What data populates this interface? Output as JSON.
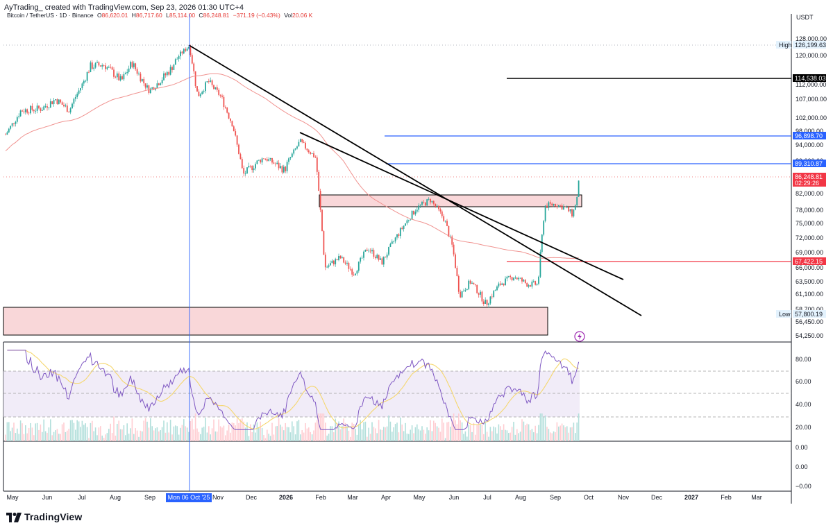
{
  "header": {
    "author_line": "AyTrading_ created with TradingView.com, Sep 23, 2026 01:30 UTC+4"
  },
  "legend": {
    "symbol": "Bitcoin / TetherUS · 1D · Binance",
    "open_label": "O",
    "open": "86,620.01",
    "high_label": "H",
    "high": "86,717.60",
    "low_label": "L",
    "low": "85,114.00",
    "close_label": "C",
    "close": "86,248.81",
    "change": "−371.19 (−0.43%)",
    "vol_label": "Vol",
    "vol": "20.06 K"
  },
  "price_axis": {
    "currency": "USDT",
    "ticks": [
      "128,000.00",
      "120,000.00",
      "112,000.00",
      "107,000.00",
      "102,000.00",
      "98,000.00",
      "94,000.00",
      "89,000.00",
      "82,000.00",
      "78,000.00",
      "75,000.00",
      "72,000.00",
      "69,000.00",
      "66,000.00",
      "63,500.00",
      "61,100.00",
      "58,700.00",
      "56,450.00",
      "54,250.00"
    ],
    "tags": [
      {
        "label": "High",
        "value": "126,199.63",
        "style": "high"
      },
      {
        "label": "",
        "value": "114,538.03",
        "style": "black"
      },
      {
        "label": "",
        "value": "96,898.70",
        "style": "blue"
      },
      {
        "label": "",
        "value": "89,310.87",
        "style": "blue"
      },
      {
        "label": "",
        "value": "86,248.81",
        "style": "last",
        "countdown": "02:29:26"
      },
      {
        "label": "",
        "value": "67,422.15",
        "style": "red"
      },
      {
        "label": "Low",
        "value": "57,800.19",
        "style": "low"
      }
    ]
  },
  "rsi_axis": {
    "ticks": [
      "80.00",
      "60.00",
      "40.00",
      "20.00"
    ]
  },
  "lower_axis": {
    "ticks": [
      "0.00",
      "0.00",
      "−0.00"
    ]
  },
  "time_axis": {
    "labels": [
      "May",
      "Jun",
      "Jul",
      "Aug",
      "Sep",
      "Oct",
      "Nov",
      "Dec",
      "2026",
      "Feb",
      "Mar",
      "Apr",
      "May",
      "Jun",
      "Jul",
      "Aug",
      "Sep",
      "Oct",
      "Nov",
      "Dec",
      "2027",
      "Feb",
      "Mar"
    ],
    "crosshair_label": "Mon 06 Oct '25"
  },
  "footer": {
    "brand": "TradingView"
  },
  "colors": {
    "up": "#26a69a",
    "down": "#ef5350",
    "ma": "#f0928f",
    "rsi": "#7e57c2",
    "rsi_ma": "#f5d76e",
    "zone_fill": "#f9d7d9",
    "zone_border": "#000000",
    "blue_level": "#2962ff",
    "red_level": "#f23645",
    "black_level": "#000000",
    "crosshair": "#2962ff"
  },
  "chart_data": {
    "type": "candlestick",
    "title": "Bitcoin / TetherUS · 1D · Binance",
    "ylabel": "USDT",
    "ylim": [
      54250,
      128000
    ],
    "series": [
      {
        "name": "Bitcoin / TetherUS",
        "monthly_close_path": [
          {
            "x": "2025-05",
            "y": 104000
          },
          {
            "x": "2025-06",
            "y": 107000
          },
          {
            "x": "2025-07",
            "y": 117000
          },
          {
            "x": "2025-08",
            "y": 111000
          },
          {
            "x": "2025-09",
            "y": 114000
          },
          {
            "x": "2025-10",
            "y": 110000
          },
          {
            "x": "2025-11",
            "y": 91000
          },
          {
            "x": "2025-12",
            "y": 88000
          },
          {
            "x": "2026-01",
            "y": 95000
          },
          {
            "x": "2026-02",
            "y": 66000
          },
          {
            "x": "2026-03",
            "y": 70000
          },
          {
            "x": "2026-04",
            "y": 76000
          },
          {
            "x": "2026-05",
            "y": 80000
          },
          {
            "x": "2026-06",
            "y": 61000
          },
          {
            "x": "2026-07",
            "y": 64000
          },
          {
            "x": "2026-08",
            "y": 64000
          },
          {
            "x": "2026-09",
            "y": 86248.81
          }
        ]
      }
    ],
    "levels": [
      {
        "value": 114538.03,
        "color": "black"
      },
      {
        "value": 96898.7,
        "color": "blue"
      },
      {
        "value": 89310.87,
        "color": "blue"
      },
      {
        "value": 67422.15,
        "color": "red"
      }
    ],
    "zones": [
      {
        "from": "2026-02",
        "to": "2026-09",
        "low": 79800,
        "high": 82000
      },
      {
        "from": "2025-05",
        "to": "2026-08",
        "low": 54250,
        "high": 58500
      }
    ],
    "trendlines": [
      {
        "from": {
          "x": "2025-10-06",
          "y": 126199.63
        },
        "to": {
          "x": "2026-11-20",
          "y": 57800
        }
      },
      {
        "from": {
          "x": "2026-01-20",
          "y": 97500
        },
        "to": {
          "x": "2026-11-15",
          "y": 64000
        }
      }
    ],
    "rsi": {
      "ylim": [
        0,
        100
      ],
      "bands": [
        30,
        50,
        70
      ]
    }
  }
}
